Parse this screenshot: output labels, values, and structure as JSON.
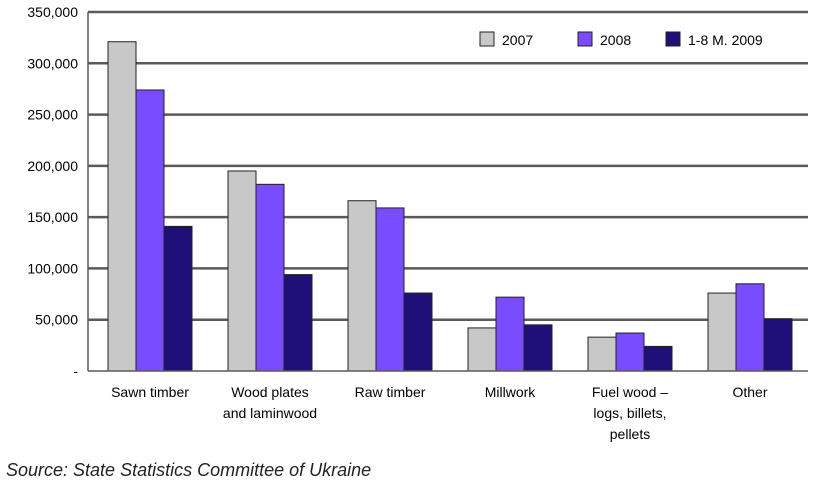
{
  "chart_data": {
    "type": "bar",
    "categories": [
      [
        "Sawn timber"
      ],
      [
        "Wood plates",
        "and laminwood"
      ],
      [
        "Raw timber"
      ],
      [
        "Millwork"
      ],
      [
        "Fuel wood –",
        "logs, billets,",
        "pellets"
      ],
      [
        "Other"
      ]
    ],
    "series": [
      {
        "name": "2007",
        "color": "#c8c8c8",
        "values": [
          321000,
          195000,
          166000,
          42000,
          33000,
          76000
        ]
      },
      {
        "name": "2008",
        "color": "#7a4cff",
        "values": [
          274000,
          182000,
          159000,
          72000,
          37000,
          85000
        ]
      },
      {
        "name": "1-8 M. 2009",
        "color": "#1f0f78",
        "values": [
          141000,
          94000,
          76000,
          45000,
          24000,
          51000
        ]
      }
    ],
    "ylim": [
      0,
      350000
    ],
    "yticks": [
      0,
      50000,
      100000,
      150000,
      200000,
      250000,
      300000,
      350000
    ],
    "ytick_labels": [
      "-",
      "50,000",
      "100,000",
      "150,000",
      "200,000",
      "250,000",
      "300,000",
      "350,000"
    ],
    "grid": true,
    "legend_position": "top-right",
    "xlabel": "",
    "ylabel": ""
  },
  "source": "Source: State Statistics Committee of Ukraine"
}
